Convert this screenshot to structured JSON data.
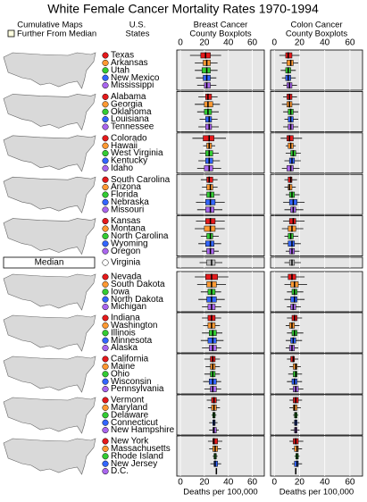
{
  "chart_data": {
    "type": "micromap-boxplot",
    "title": "White Female Cancer Mortality Rates 1970-1994",
    "map_header": "Cumulative Maps",
    "map_legend": "Further From Median",
    "state_header": [
      "U.S.",
      "States"
    ],
    "median_label": "Median",
    "colors": [
      "#e41a1c",
      "#ff9933",
      "#33cc33",
      "#3366ff",
      "#aa66ee"
    ],
    "panels": [
      {
        "key": "breast",
        "title": [
          "Breast Cancer",
          "County Boxplots"
        ],
        "xlabel": "Deaths per 100,000",
        "xlim": [
          -3,
          70
        ],
        "xticks": [
          0,
          20,
          40,
          60
        ]
      },
      {
        "key": "colon",
        "title": [
          "Colon Cancer",
          "County Boxplots"
        ],
        "xlabel": "Deaths per 100,000",
        "xlim": [
          -3,
          70
        ],
        "xticks": [
          0,
          20,
          40,
          60
        ]
      }
    ],
    "groups": [
      {
        "states": [
          {
            "name": "Texas",
            "breast": [
              8,
              17,
              21,
              25,
              34
            ],
            "colon": [
              4,
              9,
              11,
              14,
              20
            ]
          },
          {
            "name": "Arkansas",
            "breast": [
              12,
              19,
              22,
              25,
              31
            ],
            "colon": [
              6,
              10,
              13,
              15,
              19
            ]
          },
          {
            "name": "Utah",
            "breast": [
              12,
              18,
              22,
              25,
              31
            ],
            "colon": [
              5,
              9,
              11,
              13,
              17
            ]
          },
          {
            "name": "New Mexico",
            "breast": [
              13,
              19,
              22,
              25,
              30
            ],
            "colon": [
              6,
              9,
              11,
              13,
              17
            ]
          },
          {
            "name": "Mississippi",
            "breast": [
              14,
              20,
              22,
              25,
              30
            ],
            "colon": [
              7,
              10,
              12,
              14,
              18
            ]
          }
        ]
      },
      {
        "states": [
          {
            "name": "Alabama",
            "breast": [
              15,
              21,
              23,
              26,
              31
            ],
            "colon": [
              7,
              10,
              12,
              14,
              18
            ]
          },
          {
            "name": "Georgia",
            "breast": [
              12,
              20,
              23,
              27,
              33
            ],
            "colon": [
              6,
              10,
              12,
              14,
              20
            ]
          },
          {
            "name": "Oklahoma",
            "breast": [
              14,
              20,
              23,
              26,
              32
            ],
            "colon": [
              7,
              11,
              13,
              15,
              19
            ]
          },
          {
            "name": "Louisiana",
            "breast": [
              16,
              21,
              24,
              26,
              31
            ],
            "colon": [
              8,
              11,
              13,
              15,
              19
            ]
          },
          {
            "name": "Tennessee",
            "breast": [
              15,
              21,
              24,
              26,
              32
            ],
            "colon": [
              7,
              11,
              13,
              15,
              19
            ]
          }
        ]
      },
      {
        "states": [
          {
            "name": "Colorado",
            "breast": [
              10,
              19,
              24,
              28,
              38
            ],
            "colon": [
              5,
              10,
              12,
              15,
              22
            ]
          },
          {
            "name": "Hawaii",
            "breast": [
              19,
              22,
              24,
              26,
              29
            ],
            "colon": [
              9,
              11,
              13,
              15,
              17
            ]
          },
          {
            "name": "West Virginia",
            "breast": [
              16,
              21,
              24,
              27,
              32
            ],
            "colon": [
              9,
              13,
              15,
              17,
              21
            ]
          },
          {
            "name": "Kentucky",
            "breast": [
              15,
              21,
              24,
              27,
              33
            ],
            "colon": [
              8,
              12,
              14,
              16,
              21
            ]
          },
          {
            "name": "Idaho",
            "breast": [
              14,
              20,
              24,
              27,
              34
            ],
            "colon": [
              6,
              10,
              13,
              15,
              20
            ]
          }
        ]
      },
      {
        "states": [
          {
            "name": "South Carolina",
            "breast": [
              17,
              22,
              24,
              27,
              31
            ],
            "colon": [
              8,
              11,
              13,
              14,
              18
            ]
          },
          {
            "name": "Arizona",
            "breast": [
              18,
              22,
              25,
              27,
              31
            ],
            "colon": [
              8,
              11,
              12,
              14,
              17
            ]
          },
          {
            "name": "Florida",
            "breast": [
              16,
              22,
              25,
              28,
              33
            ],
            "colon": [
              9,
              12,
              14,
              16,
              20
            ]
          },
          {
            "name": "Nebraska",
            "breast": [
              13,
              21,
              25,
              29,
              37
            ],
            "colon": [
              7,
              12,
              15,
              18,
              24
            ]
          },
          {
            "name": "Missouri",
            "breast": [
              14,
              21,
              25,
              28,
              35
            ],
            "colon": [
              8,
              13,
              15,
              17,
              23
            ]
          }
        ]
      },
      {
        "states": [
          {
            "name": "Kansas",
            "breast": [
              13,
              21,
              25,
              29,
              37
            ],
            "colon": [
              7,
              12,
              15,
              17,
              24
            ]
          },
          {
            "name": "Montana",
            "breast": [
              12,
              20,
              25,
              29,
              37
            ],
            "colon": [
              6,
              11,
              14,
              17,
              23
            ]
          },
          {
            "name": "North Carolina",
            "breast": [
              17,
              22,
              25,
              27,
              32
            ],
            "colon": [
              8,
              11,
              13,
              15,
              19
            ]
          },
          {
            "name": "Wyoming",
            "breast": [
              15,
              21,
              25,
              28,
              34
            ],
            "colon": [
              7,
              11,
              14,
              16,
              21
            ]
          },
          {
            "name": "Oregon",
            "breast": [
              18,
              22,
              25,
              28,
              32
            ],
            "colon": [
              9,
              12,
              14,
              16,
              20
            ]
          }
        ]
      }
    ],
    "median_state": {
      "name": "Virginia",
      "breast": [
        16,
        22,
        26,
        29,
        35
      ],
      "colon": [
        8,
        12,
        14,
        16,
        21
      ]
    },
    "groups2": [
      {
        "states": [
          {
            "name": "Nevada",
            "breast": [
              12,
              21,
              26,
              31,
              40
            ],
            "colon": [
              5,
              11,
              14,
              17,
              24
            ]
          },
          {
            "name": "South Dakota",
            "breast": [
              14,
              22,
              26,
              30,
              38
            ],
            "colon": [
              8,
              13,
              16,
              19,
              26
            ]
          },
          {
            "name": "Iowa",
            "breast": [
              17,
              23,
              26,
              29,
              34
            ],
            "colon": [
              10,
              14,
              16,
              18,
              23
            ]
          },
          {
            "name": "North Dakota",
            "breast": [
              15,
              22,
              26,
              30,
              37
            ],
            "colon": [
              8,
              13,
              16,
              18,
              24
            ]
          },
          {
            "name": "Michigan",
            "breast": [
              18,
              23,
              26,
              29,
              34
            ],
            "colon": [
              10,
              13,
              15,
              17,
              21
            ]
          }
        ]
      },
      {
        "states": [
          {
            "name": "Indiana",
            "breast": [
              18,
              23,
              26,
              29,
              34
            ],
            "colon": [
              10,
              14,
              16,
              18,
              22
            ]
          },
          {
            "name": "Washington",
            "breast": [
              19,
              23,
              26,
              29,
              33
            ],
            "colon": [
              9,
              12,
              14,
              16,
              20
            ]
          },
          {
            "name": "Illinois",
            "breast": [
              18,
              24,
              27,
              30,
              35
            ],
            "colon": [
              10,
              14,
              16,
              18,
              23
            ]
          },
          {
            "name": "Minnesota",
            "breast": [
              17,
              23,
              27,
              30,
              36
            ],
            "colon": [
              9,
              13,
              15,
              17,
              22
            ]
          },
          {
            "name": "Alaska",
            "breast": [
              18,
              24,
              27,
              30,
              34
            ],
            "colon": [
              9,
              12,
              14,
              16,
              19
            ]
          }
        ]
      },
      {
        "states": [
          {
            "name": "California",
            "breast": [
              20,
              25,
              27,
              29,
              33
            ],
            "colon": [
              10,
              13,
              15,
              16,
              19
            ]
          },
          {
            "name": "Maine",
            "breast": [
              21,
              25,
              27,
              29,
              33
            ],
            "colon": [
              12,
              15,
              17,
              18,
              21
            ]
          },
          {
            "name": "Ohio",
            "breast": [
              20,
              25,
              27,
              29,
              33
            ],
            "colon": [
              11,
              15,
              17,
              18,
              22
            ]
          },
          {
            "name": "Wisconsin",
            "breast": [
              19,
              24,
              27,
              30,
              34
            ],
            "colon": [
              10,
              14,
              16,
              18,
              22
            ]
          },
          {
            "name": "Pennsylvania",
            "breast": [
              20,
              25,
              27,
              30,
              34
            ],
            "colon": [
              12,
              15,
              17,
              19,
              23
            ]
          }
        ]
      },
      {
        "states": [
          {
            "name": "Vermont",
            "breast": [
              22,
              26,
              28,
              30,
              33
            ],
            "colon": [
              12,
              15,
              17,
              19,
              22
            ]
          },
          {
            "name": "Maryland",
            "breast": [
              23,
              26,
              28,
              30,
              33
            ],
            "colon": [
              12,
              15,
              16,
              18,
              21
            ]
          },
          {
            "name": "Delaware",
            "breast": [
              26,
              27,
              28,
              29,
              30
            ],
            "colon": [
              15,
              16,
              17,
              18,
              19
            ]
          },
          {
            "name": "Connecticut",
            "breast": [
              24,
              27,
              28,
              29,
              31
            ],
            "colon": [
              14,
              16,
              17,
              18,
              20
            ]
          },
          {
            "name": "New Hampshire",
            "breast": [
              24,
              27,
              28,
              30,
              32
            ],
            "colon": [
              13,
              16,
              17,
              18,
              20
            ]
          }
        ]
      },
      {
        "states": [
          {
            "name": "New York",
            "breast": [
              23,
              27,
              28,
              31,
              35
            ],
            "colon": [
              12,
              15,
              17,
              19,
              23
            ]
          },
          {
            "name": "Massachusetts",
            "breast": [
              24,
              27,
              29,
              31,
              34
            ],
            "colon": [
              14,
              16,
              18,
              19,
              22
            ]
          },
          {
            "name": "Rhode Island",
            "breast": [
              27,
              28,
              29,
              30,
              31
            ],
            "colon": [
              16,
              17,
              18,
              19,
              20
            ]
          },
          {
            "name": "New Jersey",
            "breast": [
              25,
              28,
              29,
              31,
              34
            ],
            "colon": [
              14,
              16,
              18,
              19,
              22
            ]
          },
          {
            "name": "D.C.",
            "breast": [
              30,
              30,
              30,
              30,
              30
            ],
            "colon": [
              17,
              17,
              17,
              17,
              17
            ]
          }
        ]
      }
    ]
  }
}
